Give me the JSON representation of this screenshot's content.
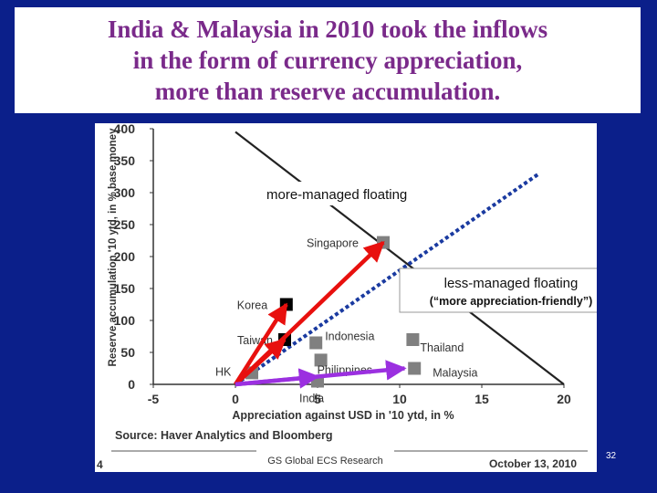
{
  "slide": {
    "title": "India & Malaysia in 2010 took the inflows\nin the form of currency appreciation,\nmore than reserve accumulation.",
    "footer_text": "GS Global ECS Research",
    "page_number": "32",
    "background_color": "#0b1f8a",
    "title_color": "#7a2a8a"
  },
  "chart_data": {
    "type": "scatter",
    "xlabel": "Appreciation against USD in '10 ytd, in %",
    "ylabel": "Reserve accumulation '10 ytd, in % base money",
    "xlim": [
      -5,
      20
    ],
    "ylim": [
      0,
      400
    ],
    "xticks": [
      "-5",
      "0",
      "5",
      "10",
      "15",
      "20"
    ],
    "yticks": [
      "0",
      "50",
      "100",
      "150",
      "200",
      "250",
      "300",
      "350",
      "400"
    ],
    "source": "Source: Haver Analytics and Bloomberg",
    "chart_footer_left": "4",
    "chart_footer_right": "October 13, 2010",
    "points": [
      {
        "label": "Singapore",
        "x": 9,
        "y": 222,
        "color": "#808080"
      },
      {
        "label": "Korea",
        "x": 3.1,
        "y": 125,
        "color": "#000000"
      },
      {
        "label": "Taiwan",
        "x": 3.0,
        "y": 70,
        "color": "#000000"
      },
      {
        "label": "Indonesia",
        "x": 4.9,
        "y": 65,
        "color": "#808080"
      },
      {
        "label": "Thailand",
        "x": 10.8,
        "y": 70,
        "color": "#808080"
      },
      {
        "label": "Philippines",
        "x": 5.2,
        "y": 38,
        "color": "#808080"
      },
      {
        "label": "Malaysia",
        "x": 10.9,
        "y": 25,
        "color": "#808080"
      },
      {
        "label": "HK",
        "x": 1.0,
        "y": 18,
        "color": "#808080"
      },
      {
        "label": "India",
        "x": 5.0,
        "y": 5,
        "color": "#808080"
      }
    ],
    "arrows": [
      {
        "to_x": 9,
        "to_y": 222
      },
      {
        "to_x": 3.1,
        "to_y": 125
      },
      {
        "to_x": 3.0,
        "to_y": 70
      },
      {
        "to_x": 10.3,
        "to_y": 25
      },
      {
        "to_x": 5.0,
        "to_y": 12
      }
    ],
    "arrow_origin": {
      "x": 0,
      "y": 0
    },
    "arrow_colors": {
      "red": "#e8100e",
      "purple": "#9b30e0"
    },
    "managed_line": {
      "from": {
        "x": 0,
        "y": 395
      },
      "to": {
        "x": 20,
        "y": 0
      }
    },
    "dashed_line": {
      "from": {
        "x": 0,
        "y": 0
      },
      "to": {
        "x": 18.5,
        "y": 330
      },
      "color": "#1a3aa0"
    },
    "annotations": {
      "more_managed": "more-managed floating",
      "less_managed": "less-managed floating",
      "less_managed_sub": "(“more appreciation-friendly”)"
    }
  }
}
